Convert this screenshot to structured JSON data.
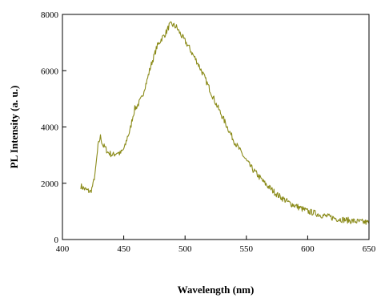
{
  "chart_data": {
    "type": "line",
    "xlabel": "Wavelength (nm)",
    "ylabel": "PL Intensity (a. u.)",
    "xlim": [
      400,
      650
    ],
    "ylim": [
      0,
      8000
    ],
    "xticks": [
      400,
      450,
      500,
      550,
      600,
      650
    ],
    "yticks": [
      0,
      2000,
      4000,
      6000,
      8000
    ],
    "grid": false,
    "line_color": "#8b8b1a",
    "series": [
      {
        "x": [
          415,
          418,
          420,
          423,
          425,
          427,
          428,
          429,
          430,
          431,
          432,
          433,
          435,
          437,
          439,
          441,
          443,
          445,
          447,
          449,
          451,
          453,
          455,
          457,
          459,
          461,
          463,
          465,
          467,
          469,
          471,
          473,
          475,
          477,
          479,
          481,
          483,
          485,
          487,
          489,
          491,
          493,
          495,
          497,
          500,
          503,
          506,
          510,
          515,
          520,
          525,
          530,
          535,
          540,
          545,
          550,
          555,
          560,
          565,
          570,
          575,
          580,
          585,
          590,
          595,
          600,
          605,
          610,
          615,
          620,
          625,
          630,
          635,
          640,
          645,
          650
        ],
        "y": [
          1900,
          1800,
          1750,
          1700,
          1950,
          2450,
          2900,
          3300,
          3500,
          3650,
          3500,
          3350,
          3250,
          3100,
          3050,
          3000,
          3050,
          3100,
          3050,
          3150,
          3300,
          3650,
          3850,
          4300,
          4650,
          4750,
          4900,
          5050,
          5400,
          5650,
          6000,
          6300,
          6550,
          6850,
          7000,
          7150,
          7250,
          7400,
          7600,
          7650,
          7600,
          7550,
          7400,
          7250,
          7050,
          6850,
          6600,
          6300,
          5850,
          5350,
          4850,
          4400,
          3950,
          3500,
          3150,
          2800,
          2500,
          2250,
          2000,
          1800,
          1600,
          1450,
          1300,
          1200,
          1100,
          1000,
          950,
          880,
          830,
          780,
          730,
          700,
          670,
          640,
          620,
          600
        ]
      }
    ]
  }
}
